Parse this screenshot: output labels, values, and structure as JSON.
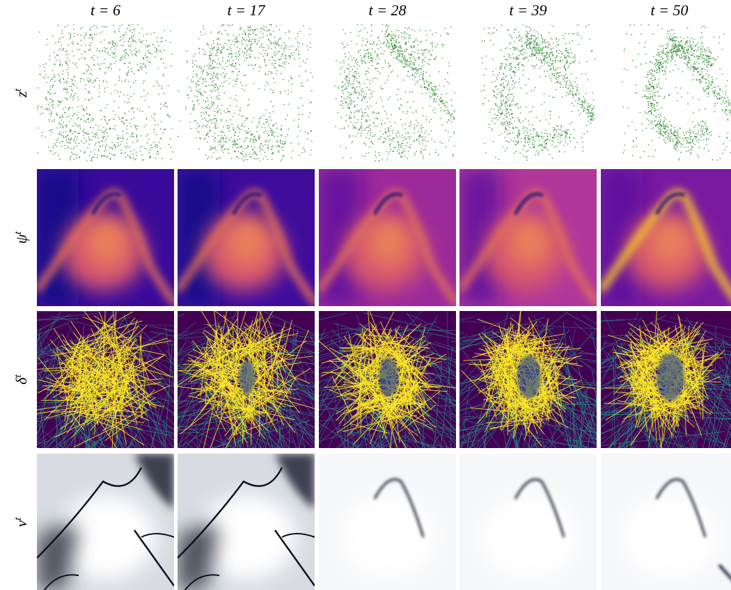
{
  "columns": [
    {
      "label": "t = 6"
    },
    {
      "label": "t = 17"
    },
    {
      "label": "t = 28"
    },
    {
      "label": "t = 39"
    },
    {
      "label": "t = 50"
    }
  ],
  "rows": [
    {
      "symbol": "z",
      "superscript": "t"
    },
    {
      "symbol": "ψ",
      "superscript": "t"
    },
    {
      "symbol": "δ",
      "superscript": "t"
    },
    {
      "symbol": "ν",
      "superscript": "t"
    }
  ]
}
